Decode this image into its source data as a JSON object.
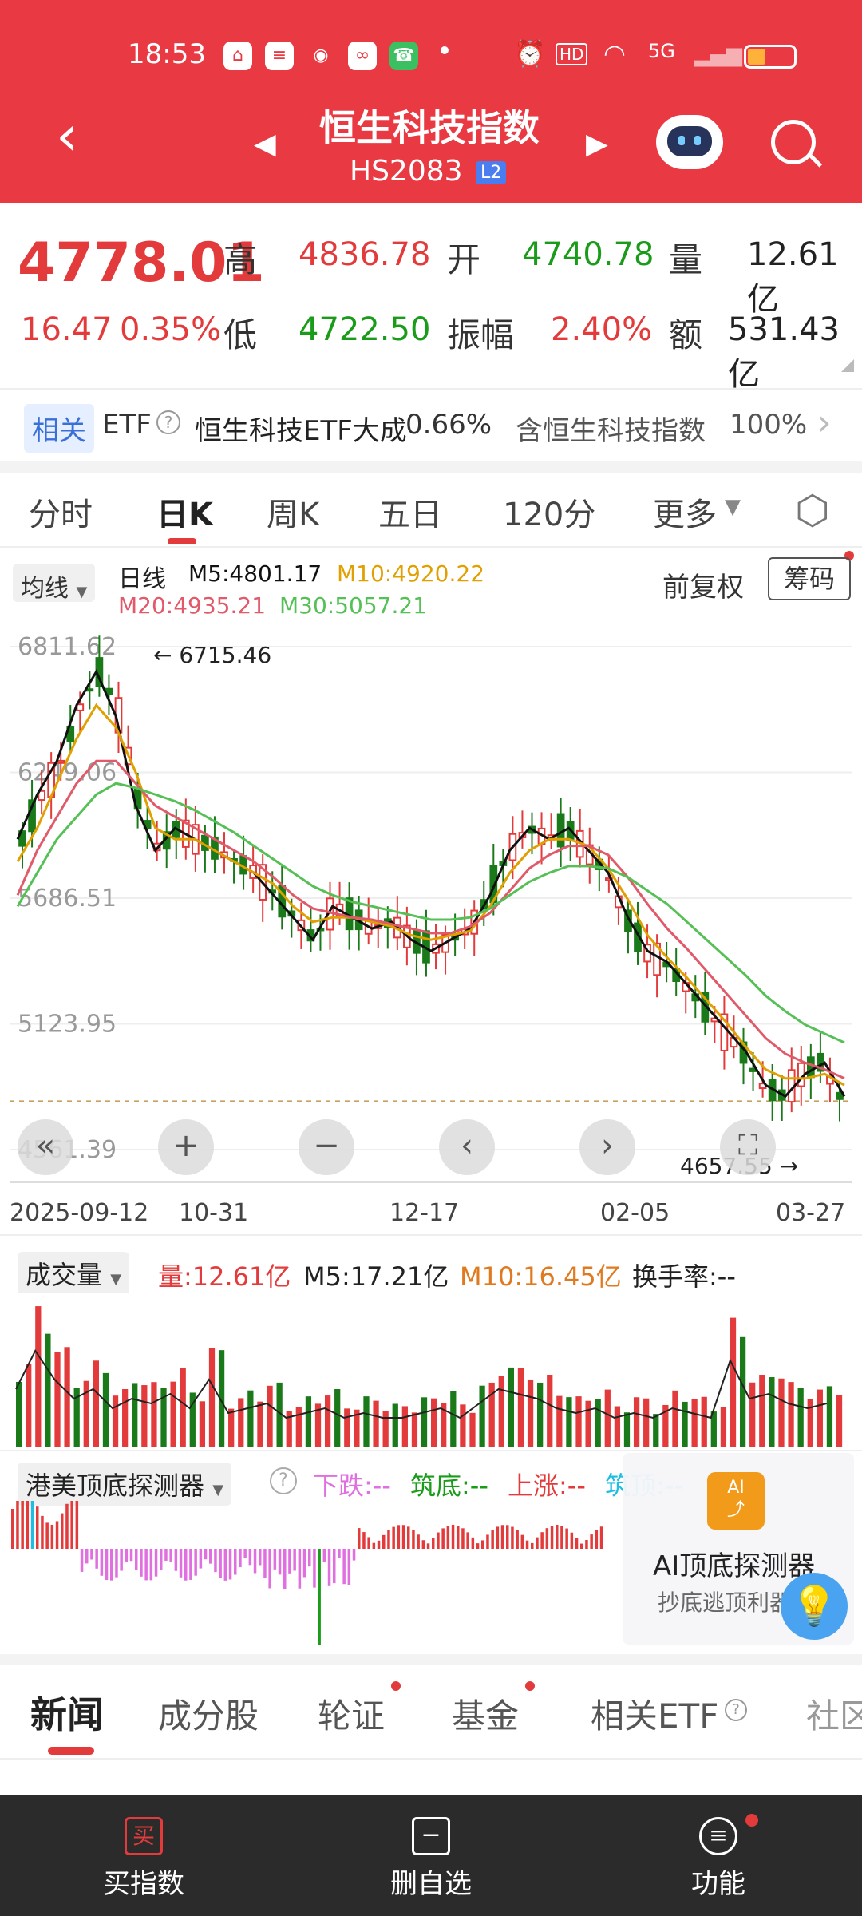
{
  "status_bar": {
    "time": "18:53",
    "network": "5G"
  },
  "header": {
    "title": "恒生科技指数",
    "code": "HS2083",
    "badge": "L2"
  },
  "quote": {
    "price": "4778.01",
    "change": "16.47",
    "change_pct": "0.35%",
    "high_label": "高",
    "high": "4836.78",
    "open_label": "开",
    "open": "4740.78",
    "volume_label": "量",
    "volume": "12.61亿",
    "low_label": "低",
    "low": "4722.50",
    "amplitude_label": "振幅",
    "amplitude": "2.40%",
    "amount_label": "额",
    "amount": "531.43亿"
  },
  "etf_row": {
    "tag": "相关",
    "etf": "ETF",
    "name": "恒生科技ETF大成",
    "pct": "0.66%",
    "contains": "含恒生科技指数",
    "contains_pct": "100%"
  },
  "tabs": [
    "分时",
    "日K",
    "周K",
    "五日",
    "120分",
    "更多"
  ],
  "ma_bar": {
    "dropdown": "均线",
    "period": "日线",
    "m5": "M5:4801.17",
    "m10": "M10:4920.22",
    "m20": "M20:4935.21",
    "m30": "M30:5057.21",
    "adjust": "前复权",
    "chips": "筹码"
  },
  "colors": {
    "header": "#e93a43",
    "up": "#e33b3b",
    "down": "#1a9c1a",
    "m5": "#111111",
    "m10": "#e0a000",
    "m20": "#e05a6a",
    "m30": "#55c055"
  },
  "chart_data": {
    "type": "line",
    "ylabels": [
      "6811.62",
      "6249.06",
      "5686.51",
      "5123.95",
      "4561.39"
    ],
    "xlabels": [
      "2025-09-12",
      "10-31",
      "12-17",
      "02-05",
      "03-27"
    ],
    "max_label": "6715.46",
    "min_label": "4657.55",
    "ylim": [
      4561.39,
      6811.62
    ],
    "series": [
      {
        "name": "M5",
        "values": [
          5950,
          6150,
          6300,
          6550,
          6700,
          6500,
          6100,
          5900,
          6000,
          5950,
          5900,
          5850,
          5800,
          5700,
          5600,
          5500,
          5650,
          5600,
          5550,
          5580,
          5500,
          5450,
          5500,
          5550,
          5700,
          5900,
          6000,
          5950,
          6000,
          5900,
          5800,
          5600,
          5450,
          5400,
          5300,
          5200,
          5100,
          5000,
          4850,
          4800,
          4900,
          4950,
          4800
        ]
      },
      {
        "name": "M10",
        "values": [
          5850,
          6000,
          6200,
          6400,
          6550,
          6450,
          6250,
          6000,
          5950,
          5950,
          5900,
          5850,
          5800,
          5750,
          5650,
          5580,
          5600,
          5600,
          5580,
          5560,
          5520,
          5500,
          5520,
          5540,
          5650,
          5800,
          5900,
          5950,
          5950,
          5920,
          5820,
          5680,
          5520,
          5420,
          5330,
          5230,
          5130,
          5020,
          4920,
          4880,
          4880,
          4900,
          4850
        ]
      },
      {
        "name": "M20",
        "values": [
          5700,
          5900,
          6050,
          6200,
          6300,
          6300,
          6200,
          6100,
          6050,
          6000,
          5950,
          5900,
          5850,
          5780,
          5700,
          5640,
          5620,
          5600,
          5590,
          5570,
          5550,
          5530,
          5530,
          5560,
          5620,
          5720,
          5820,
          5880,
          5920,
          5920,
          5880,
          5780,
          5660,
          5550,
          5460,
          5360,
          5260,
          5160,
          5060,
          4990,
          4950,
          4920,
          4880
        ]
      },
      {
        "name": "M30",
        "values": [
          5650,
          5800,
          5950,
          6050,
          6150,
          6200,
          6180,
          6150,
          6120,
          6080,
          6030,
          5980,
          5920,
          5860,
          5800,
          5740,
          5700,
          5670,
          5650,
          5630,
          5610,
          5590,
          5590,
          5600,
          5640,
          5700,
          5760,
          5800,
          5830,
          5830,
          5820,
          5780,
          5720,
          5660,
          5580,
          5500,
          5420,
          5340,
          5250,
          5180,
          5120,
          5080,
          5040
        ]
      }
    ]
  },
  "volume": {
    "dropdown": "成交量",
    "vol": "量:12.61亿",
    "m5": "M5:17.21亿",
    "m10": "M10:16.45亿",
    "turnover": "换手率:--",
    "bars": [
      0.6,
      1.0,
      0.7,
      0.5,
      0.6,
      0.4,
      0.5,
      0.45,
      0.55,
      0.4,
      0.7,
      0.35,
      0.4,
      0.45,
      0.3,
      0.35,
      0.4,
      0.3,
      0.35,
      0.3,
      0.3,
      0.35,
      0.4,
      0.3,
      0.45,
      0.6,
      0.55,
      0.5,
      0.4,
      0.35,
      0.4,
      0.3,
      0.35,
      0.3,
      0.4,
      0.35,
      0.3,
      0.9,
      0.5,
      0.55,
      0.45,
      0.4,
      0.45
    ]
  },
  "detector": {
    "dropdown": "港美顶底探测器",
    "down": "下跌:--",
    "bottom": "筑底:--",
    "up": "上涨:--",
    "top": "筑顶:--",
    "ai_title": "AI顶底探测器",
    "ai_sub": "抄底逃顶利器"
  },
  "news_tabs": [
    "新闻",
    "成分股",
    "轮证",
    "基金",
    "相关ETF",
    "社区"
  ],
  "bottom_nav": {
    "buy": "买指数",
    "remove": "删自选",
    "func": "功能"
  }
}
